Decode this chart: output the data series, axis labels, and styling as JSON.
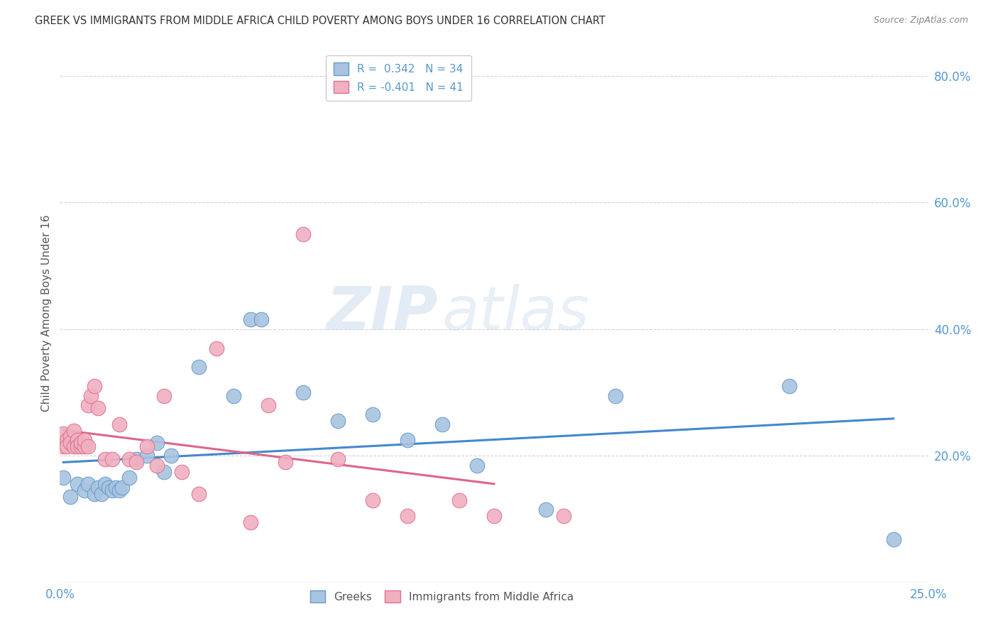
{
  "title": "GREEK VS IMMIGRANTS FROM MIDDLE AFRICA CHILD POVERTY AMONG BOYS UNDER 16 CORRELATION CHART",
  "source": "Source: ZipAtlas.com",
  "ylabel": "Child Poverty Among Boys Under 16",
  "ytick_labels": [
    "20.0%",
    "40.0%",
    "60.0%",
    "80.0%"
  ],
  "ytick_values": [
    0.2,
    0.4,
    0.6,
    0.8
  ],
  "xlim": [
    0.0,
    0.25
  ],
  "ylim": [
    0.0,
    0.85
  ],
  "legend_entries": [
    {
      "label": "R =  0.342   N = 34",
      "color": "#a8c4e0"
    },
    {
      "label": "R = -0.401   N = 41",
      "color": "#f0b0c0"
    }
  ],
  "bottom_legend": [
    "Greeks",
    "Immigrants from Middle Africa"
  ],
  "greek_color": "#a8c4e0",
  "immigrant_color": "#f0b0c0",
  "greek_edge_color": "#6699cc",
  "immigrant_edge_color": "#e07090",
  "regression_greek_color": "#4488cc",
  "regression_immigrant_color": "#dd6688",
  "greek_x": [
    0.001,
    0.003,
    0.005,
    0.007,
    0.008,
    0.01,
    0.011,
    0.012,
    0.013,
    0.014,
    0.015,
    0.016,
    0.017,
    0.018,
    0.02,
    0.022,
    0.025,
    0.028,
    0.03,
    0.032,
    0.04,
    0.05,
    0.055,
    0.058,
    0.07,
    0.08,
    0.09,
    0.1,
    0.11,
    0.12,
    0.14,
    0.16,
    0.21,
    0.24
  ],
  "greek_y": [
    0.165,
    0.135,
    0.155,
    0.145,
    0.155,
    0.14,
    0.15,
    0.14,
    0.155,
    0.15,
    0.145,
    0.15,
    0.145,
    0.15,
    0.165,
    0.195,
    0.2,
    0.22,
    0.175,
    0.2,
    0.34,
    0.295,
    0.415,
    0.415,
    0.3,
    0.255,
    0.265,
    0.225,
    0.25,
    0.185,
    0.115,
    0.295,
    0.31,
    0.068
  ],
  "immigrant_x": [
    0.001,
    0.001,
    0.002,
    0.002,
    0.003,
    0.003,
    0.004,
    0.004,
    0.005,
    0.005,
    0.005,
    0.006,
    0.006,
    0.007,
    0.007,
    0.008,
    0.008,
    0.009,
    0.01,
    0.011,
    0.013,
    0.015,
    0.017,
    0.02,
    0.022,
    0.025,
    0.028,
    0.03,
    0.035,
    0.04,
    0.045,
    0.055,
    0.06,
    0.065,
    0.07,
    0.08,
    0.09,
    0.1,
    0.115,
    0.125,
    0.145
  ],
  "immigrant_y": [
    0.235,
    0.215,
    0.225,
    0.215,
    0.23,
    0.22,
    0.24,
    0.215,
    0.22,
    0.225,
    0.215,
    0.215,
    0.22,
    0.215,
    0.225,
    0.215,
    0.28,
    0.295,
    0.31,
    0.275,
    0.195,
    0.195,
    0.25,
    0.195,
    0.19,
    0.215,
    0.185,
    0.295,
    0.175,
    0.14,
    0.37,
    0.095,
    0.28,
    0.19,
    0.55,
    0.195,
    0.13,
    0.105,
    0.13,
    0.105,
    0.105
  ],
  "watermark_zip": "ZIP",
  "watermark_atlas": "atlas",
  "background_color": "#ffffff",
  "grid_color": "#d0d0d0",
  "title_color": "#333333",
  "axis_tick_color": "#5599cc",
  "ylabel_color": "#555555"
}
